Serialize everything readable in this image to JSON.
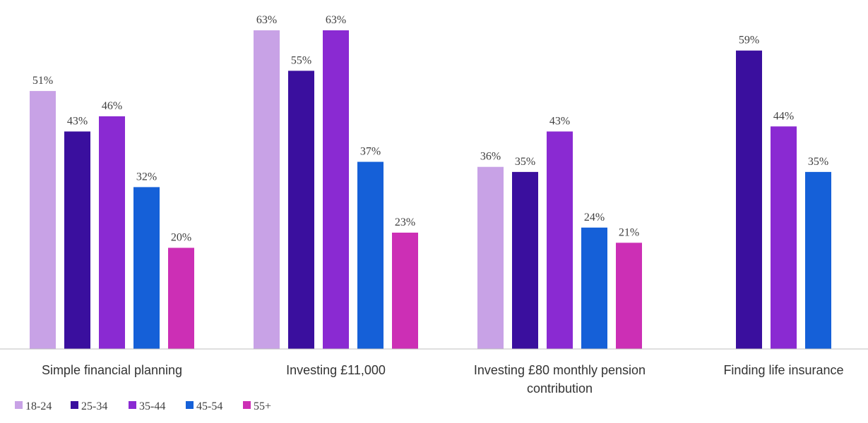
{
  "chart_data": {
    "type": "bar",
    "categories": [
      [
        "Simple financial planning"
      ],
      [
        "Investing £11,000"
      ],
      [
        "Investing £80 monthly pension",
        "contribution"
      ],
      [
        "Finding life insurance"
      ]
    ],
    "series": [
      {
        "name": "18-24",
        "color": "#c8a2e6",
        "values": [
          51,
          63,
          36,
          null
        ]
      },
      {
        "name": "25-34",
        "color": "#3a0f9e",
        "values": [
          43,
          55,
          35,
          59
        ]
      },
      {
        "name": "35-44",
        "color": "#8a2ad2",
        "values": [
          46,
          63,
          43,
          44
        ]
      },
      {
        "name": "45-54",
        "color": "#1560d8",
        "values": [
          32,
          37,
          24,
          35
        ]
      },
      {
        "name": "55+",
        "color": "#cc2fb5",
        "values": [
          20,
          23,
          21,
          null
        ]
      }
    ],
    "value_suffix": "%",
    "ylim": [
      0,
      65
    ],
    "grid": false,
    "legend": "bottom-left",
    "title": "",
    "xlabel": "",
    "ylabel": ""
  }
}
